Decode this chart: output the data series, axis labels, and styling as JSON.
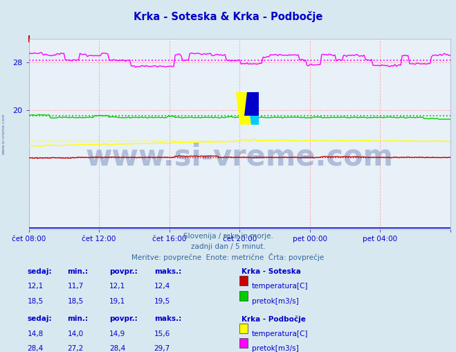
{
  "title": "Krka - Soteska & Krka - Podbočje",
  "title_color": "#0000cc",
  "background_color": "#d8e8f0",
  "plot_bg_color": "#e8f0f8",
  "grid_color": "#ffaaaa",
  "ylim": [
    0,
    32
  ],
  "yticks": [
    20,
    28
  ],
  "xtick_labels": [
    "čet 08:00",
    "čet 12:00",
    "čet 16:00",
    "čet 20:00",
    "pet 00:00",
    "pet 04:00"
  ],
  "n_points": 289,
  "subtitle_lines": [
    "Slovenija / reke in morje.",
    "zadnji dan / 5 minut.",
    "Meritve: povprečne  Enote: metrične  Črta: povprečje"
  ],
  "legend_data": [
    {
      "station": "Krka - Soteska",
      "rows": [
        {
          "sedaj": "12,1",
          "min": "11,7",
          "povpr": "12,1",
          "maks": "12,4",
          "color": "#cc0000",
          "label": "temperatura[C]"
        },
        {
          "sedaj": "18,5",
          "min": "18,5",
          "povpr": "19,1",
          "maks": "19,5",
          "color": "#00cc00",
          "label": "pretok[m3/s]"
        }
      ]
    },
    {
      "station": "Krka - Podbočje",
      "rows": [
        {
          "sedaj": "14,8",
          "min": "14,0",
          "povpr": "14,9",
          "maks": "15,6",
          "color": "#ffff00",
          "label": "temperatura[C]"
        },
        {
          "sedaj": "28,4",
          "min": "27,2",
          "povpr": "28,4",
          "maks": "29,7",
          "color": "#ff00ff",
          "label": "pretok[m3/s]"
        }
      ]
    }
  ],
  "watermark": "www.si-vreme.com",
  "soteska_temp_mean": 12.1,
  "soteska_pretok_mean": 19.1,
  "podbocje_temp_mean": 14.9,
  "podbocje_pretok_mean": 28.4,
  "text_color": "#336699",
  "blue_color": "#0000cc"
}
